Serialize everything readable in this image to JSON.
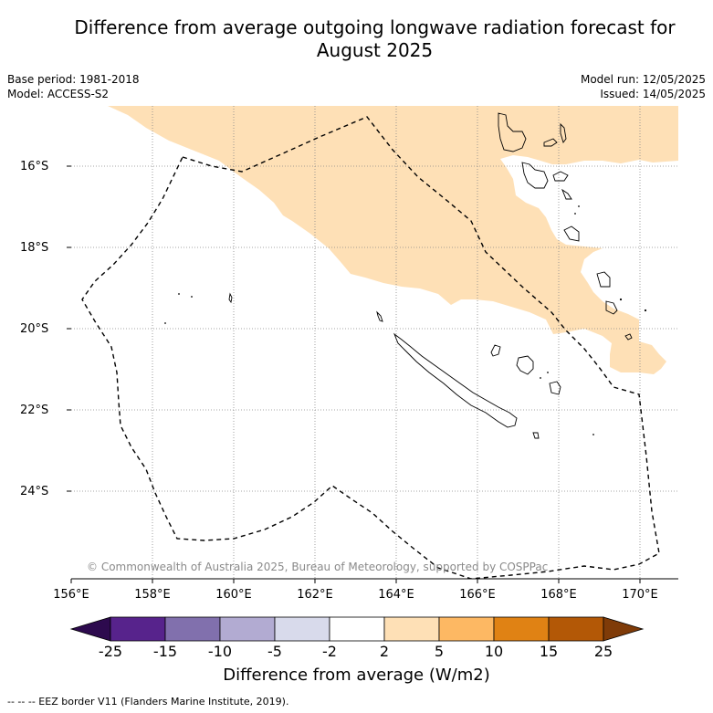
{
  "title_line1": "Difference from average outgoing longwave radiation forecast for",
  "title_line2": "August 2025",
  "base_period": "Base period: 1981-2018",
  "model": "Model: ACCESS-S2",
  "model_run": "Model run: 12/05/2025",
  "issued": "Issued: 14/05/2025",
  "lat_labels": [
    "16°S",
    "18°S",
    "20°S",
    "22°S",
    "24°S"
  ],
  "lon_labels": [
    "156°E",
    "158°E",
    "160°E",
    "162°E",
    "164°E",
    "166°E",
    "168°E",
    "170°E"
  ],
  "copyright": "© Commonwealth of Australia 2025, Bureau of Meteorology, supported by COSPPac",
  "colorbar": {
    "ticks": [
      "-25",
      "-15",
      "-10",
      "-5",
      "-2",
      "2",
      "5",
      "10",
      "15",
      "25"
    ],
    "colors": [
      "#2d0a4e",
      "#57238c",
      "#8170ad",
      "#b2abd2",
      "#d8daeb",
      "#ffffff",
      "#fee0b6",
      "#fdb863",
      "#e08214",
      "#b35806",
      "#7f3b08"
    ],
    "title": "Difference from average (W/m2)"
  },
  "footnote": "-- -- -- EEZ border V11 (Flanders Marine Institute, 2019).",
  "map_colors": {
    "anomaly_fill": "#fee0b6",
    "gridline": "#888888",
    "eez_border": "#000000"
  }
}
